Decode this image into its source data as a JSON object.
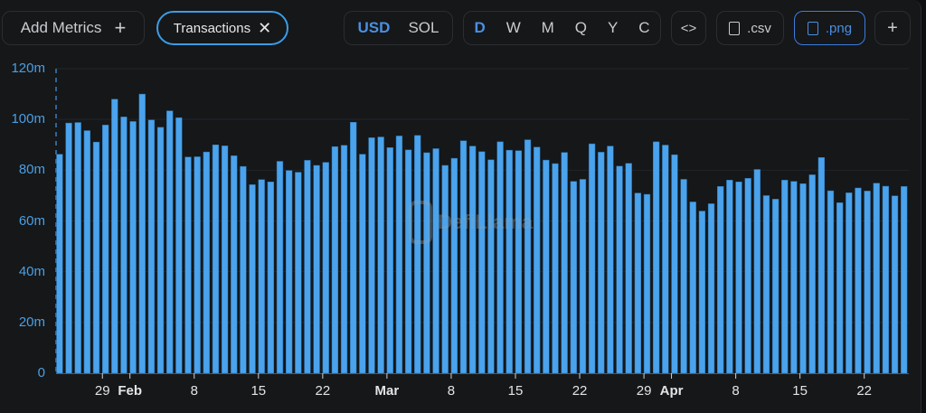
{
  "toolbar": {
    "add_metrics_label": "Add Metrics",
    "add_icon": "plus-icon",
    "metric_chip": "Transactions",
    "currency_options": [
      "USD",
      "SOL"
    ],
    "currency_selected": "USD",
    "period_options": [
      "D",
      "W",
      "M",
      "Q",
      "Y",
      "C"
    ],
    "period_selected": "D",
    "embed_icon": "code-icon",
    "csv_label": ".csv",
    "png_label": ".png",
    "plus_label": "+"
  },
  "watermark": "DefiLlama",
  "colors": {
    "bar": "#4aa3ec",
    "accent": "#4a8fe3",
    "chip_border": "#3b9ce6"
  },
  "chart_data": {
    "type": "bar",
    "title": "",
    "xlabel": "",
    "ylabel": "",
    "ylim": [
      0,
      120000000
    ],
    "y_ticks": [
      "0",
      "20m",
      "40m",
      "60m",
      "80m",
      "100m",
      "120m"
    ],
    "grid": true,
    "start_date": "Jan 24",
    "end_date": "Apr 26",
    "x_ticks": [
      {
        "date": "Jan 29",
        "label": "29",
        "bold": false
      },
      {
        "date": "Feb 1",
        "label": "Feb",
        "bold": true
      },
      {
        "date": "Feb 8",
        "label": "8",
        "bold": false
      },
      {
        "date": "Feb 15",
        "label": "15",
        "bold": false
      },
      {
        "date": "Feb 22",
        "label": "22",
        "bold": false
      },
      {
        "date": "Mar 1",
        "label": "Mar",
        "bold": true
      },
      {
        "date": "Mar 8",
        "label": "8",
        "bold": false
      },
      {
        "date": "Mar 15",
        "label": "15",
        "bold": false
      },
      {
        "date": "Mar 22",
        "label": "22",
        "bold": false
      },
      {
        "date": "Mar 29",
        "label": "29",
        "bold": false
      },
      {
        "date": "Apr 1",
        "label": "Apr",
        "bold": true
      },
      {
        "date": "Apr 8",
        "label": "8",
        "bold": false
      },
      {
        "date": "Apr 15",
        "label": "15",
        "bold": false
      },
      {
        "date": "Apr 22",
        "label": "22",
        "bold": false
      }
    ],
    "series": [
      {
        "values_millions": [
          86.3,
          98.6,
          98.8,
          95.6,
          91.1,
          97.8,
          108,
          101,
          99.2,
          110,
          99.8,
          96.9,
          103.4,
          100.7,
          85.2,
          85.3,
          87.2,
          90,
          89.6,
          85.7,
          81.5,
          74.3,
          76.3,
          75.4,
          83.5,
          79.9,
          79.2,
          83.9,
          81.9,
          83.1,
          89.3,
          89.8,
          98.9,
          86.3,
          92.8,
          93.1,
          88.9,
          93.5,
          88.0,
          93.7,
          86.9,
          88.5,
          81.9,
          84.7,
          91.6,
          89.5,
          87.3,
          84.1,
          91.2,
          87.9,
          87.7,
          92.0,
          89.1,
          84.0,
          82.6,
          87.0,
          75.6,
          76.4,
          90.4,
          87.1,
          89.5,
          81.6,
          82.7,
          71.0,
          70.5,
          91.2,
          89.9,
          86.1,
          76.4,
          67.5,
          63.9,
          66.8,
          73.6,
          76.1,
          75.4,
          76.8,
          80.3,
          70.0,
          68.6,
          76.1,
          75.6,
          74.7,
          78.2,
          85.0,
          71.9,
          67.2,
          71.1,
          73.0,
          71.8,
          74.9,
          73.7,
          69.9,
          73.6
        ]
      }
    ]
  }
}
